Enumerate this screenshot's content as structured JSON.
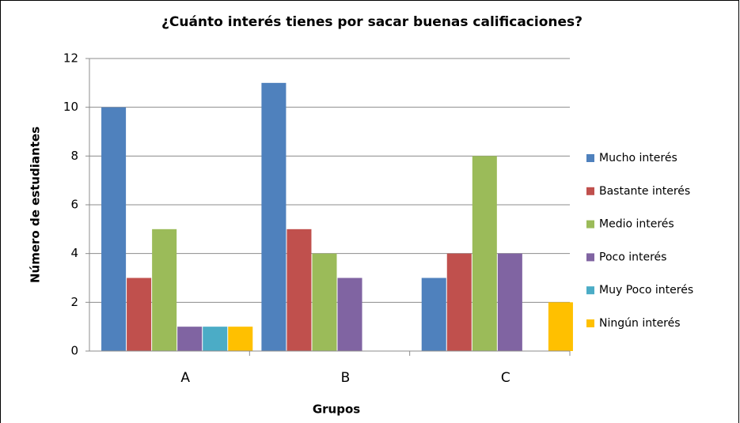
{
  "chart_data": {
    "type": "bar",
    "title": "¿Cuánto interés tienes por sacar buenas calificaciones?",
    "x_label": "Grupos",
    "y_label": "Número de estudiantes",
    "categories": [
      "A",
      "B",
      "C"
    ],
    "series": [
      {
        "name": "Mucho interés",
        "color": "#4f81bd",
        "values": [
          10,
          11,
          3
        ]
      },
      {
        "name": "Bastante interés",
        "color": "#c0504d",
        "values": [
          3,
          5,
          4
        ]
      },
      {
        "name": "Medio interés",
        "color": "#9bbb59",
        "values": [
          5,
          4,
          8
        ]
      },
      {
        "name": "Poco interés",
        "color": "#8064a2",
        "values": [
          1,
          3,
          4
        ]
      },
      {
        "name": "Muy Poco interés",
        "color": "#4bacc6",
        "values": [
          1,
          0,
          0
        ]
      },
      {
        "name": "Ningún interés",
        "color": "#ffc000",
        "values": [
          1,
          0,
          2
        ]
      }
    ],
    "ylim": [
      0,
      12
    ],
    "yticks": [
      0,
      2,
      4,
      6,
      8,
      10,
      12
    ],
    "grid": true,
    "legend": "right"
  }
}
